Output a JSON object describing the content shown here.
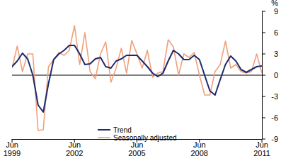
{
  "chart_data": {
    "type": "line",
    "y_label": "%",
    "categories": [
      "Jun 1999",
      null,
      null,
      null,
      null,
      null,
      null,
      null,
      null,
      null,
      null,
      null,
      "Jun 2002",
      null,
      null,
      null,
      null,
      null,
      null,
      null,
      null,
      null,
      null,
      null,
      "Jun 2005",
      null,
      null,
      null,
      null,
      null,
      null,
      null,
      null,
      null,
      null,
      null,
      "Jun 2008",
      null,
      null,
      null,
      null,
      null,
      null,
      null,
      null,
      null,
      null,
      null,
      "Jun 2011"
    ],
    "series": [
      {
        "name": "Trend",
        "color": "#1c2a6e",
        "values": [
          1.2,
          2.0,
          3.1,
          2.3,
          0.0,
          -4.2,
          -5.2,
          -1.2,
          2.2,
          3.0,
          3.5,
          4.2,
          4.2,
          3.0,
          1.5,
          1.6,
          2.3,
          2.5,
          1.2,
          1.0,
          2.0,
          2.3,
          2.8,
          2.8,
          2.8,
          2.0,
          1.2,
          0.3,
          -0.2,
          0.3,
          2.0,
          3.5,
          3.0,
          2.2,
          2.2,
          2.8,
          2.2,
          0.0,
          -2.2,
          -2.8,
          -0.6,
          1.5,
          2.7,
          2.0,
          0.8,
          0.4,
          0.8,
          1.2,
          1.3
        ]
      },
      {
        "name": "Seasonally adjusted",
        "color": "#f0a07c",
        "values": [
          1.0,
          4.1,
          0.5,
          3.0,
          3.0,
          -7.8,
          -7.7,
          1.2,
          2.2,
          3.2,
          2.8,
          3.5,
          7.0,
          1.5,
          6.0,
          0.5,
          -0.5,
          3.0,
          4.7,
          -1.0,
          1.0,
          3.8,
          0.3,
          4.9,
          3.0,
          1.0,
          3.5,
          -0.3,
          0.3,
          0.5,
          5.0,
          4.0,
          0.0,
          3.0,
          2.5,
          3.2,
          0.0,
          -2.8,
          -2.8,
          0.5,
          1.5,
          4.8,
          1.0,
          1.5,
          0.5,
          0.3,
          0.5,
          3.0,
          0.3
        ]
      }
    ],
    "ylim": [
      -9,
      9
    ],
    "yticks": [
      -9,
      -6,
      -3,
      0,
      3,
      6,
      9
    ],
    "grid": false,
    "legend": "lower left"
  }
}
